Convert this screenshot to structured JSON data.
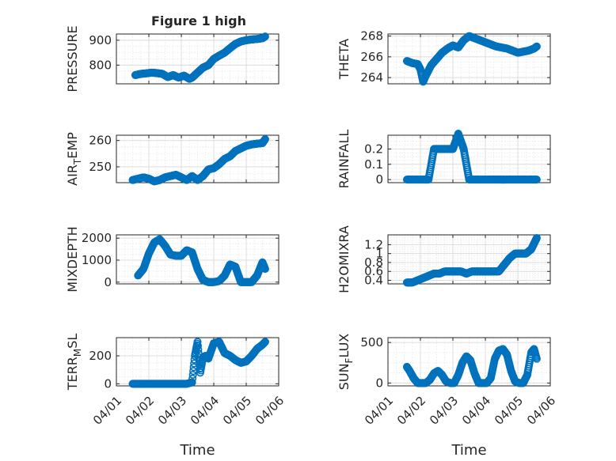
{
  "figure": {
    "marker_color": "#0072bd"
  },
  "chart_data": [
    {
      "type": "scatter",
      "id": "pressure",
      "title": "Figure 1 high",
      "ylabel": "PRESSURE",
      "ylabel_sub": "",
      "ylabel_post": "",
      "xlim": [
        "04/01",
        "04/06"
      ],
      "ylim": [
        725,
        925
      ],
      "yticks": [
        800,
        900
      ],
      "yticklabels": [
        "800",
        "900"
      ],
      "grid": true,
      "x": [
        "04/01 14:00",
        "04/01 18:00",
        "04/01 22:00",
        "04/02 02:00",
        "04/02 06:00",
        "04/02 10:00",
        "04/02 14:00",
        "04/02 18:00",
        "04/02 22:00",
        "04/03 02:00",
        "04/03 06:00",
        "04/03 08:00",
        "04/03 12:00",
        "04/03 16:00",
        "04/03 20:00",
        "04/04 00:00",
        "04/04 04:00",
        "04/04 08:00",
        "04/04 12:00",
        "04/04 16:00",
        "04/04 20:00",
        "04/05 00:00",
        "04/05 04:00",
        "04/05 08:00",
        "04/05 12:00",
        "04/05 14:00"
      ],
      "y": [
        760,
        765,
        767,
        770,
        768,
        765,
        752,
        760,
        750,
        758,
        745,
        750,
        770,
        790,
        800,
        825,
        838,
        850,
        868,
        885,
        895,
        900,
        903,
        905,
        908,
        915
      ]
    },
    {
      "type": "scatter",
      "id": "theta",
      "title": "",
      "ylabel": "THETA",
      "ylabel_sub": "",
      "ylabel_post": "",
      "xlim": [
        "04/01",
        "04/06"
      ],
      "ylim": [
        263.4,
        268.2
      ],
      "yticks": [
        264,
        266,
        268
      ],
      "yticklabels": [
        "264",
        "266",
        "268"
      ],
      "grid": true,
      "x": [
        "04/01 14:00",
        "04/01 18:00",
        "04/01 22:00",
        "04/02 00:00",
        "04/02 02:00",
        "04/02 04:00",
        "04/02 08:00",
        "04/02 12:00",
        "04/02 16:00",
        "04/02 20:00",
        "04/03 00:00",
        "04/03 04:00",
        "04/03 08:00",
        "04/03 12:00",
        "04/03 16:00",
        "04/03 20:00",
        "04/04 00:00",
        "04/04 04:00",
        "04/04 08:00",
        "04/04 12:00",
        "04/04 16:00",
        "04/04 20:00",
        "04/05 00:00",
        "04/05 04:00",
        "04/05 08:00",
        "04/05 12:00",
        "04/05 14:00"
      ],
      "y": [
        265.6,
        265.4,
        265.3,
        264.8,
        263.6,
        264.2,
        265.2,
        265.8,
        266.4,
        266.8,
        267.1,
        266.9,
        267.6,
        268.0,
        267.8,
        267.6,
        267.4,
        267.2,
        267.0,
        266.9,
        266.8,
        266.6,
        266.4,
        266.5,
        266.6,
        266.8,
        267.0
      ]
    },
    {
      "type": "scatter",
      "id": "airtemp",
      "title": "",
      "ylabel": "AIR",
      "ylabel_sub": "T",
      "ylabel_post": "EMP",
      "xlim": [
        "04/01",
        "04/06"
      ],
      "ylim": [
        244,
        262
      ],
      "yticks": [
        250,
        260
      ],
      "yticklabels": [
        "250",
        "260"
      ],
      "grid": true,
      "x": [
        "04/01 12:00",
        "04/01 16:00",
        "04/01 20:00",
        "04/02 00:00",
        "04/02 04:00",
        "04/02 08:00",
        "04/02 12:00",
        "04/02 16:00",
        "04/02 20:00",
        "04/03 00:00",
        "04/03 04:00",
        "04/03 08:00",
        "04/03 12:00",
        "04/03 16:00",
        "04/03 20:00",
        "04/04 00:00",
        "04/04 04:00",
        "04/04 08:00",
        "04/04 12:00",
        "04/04 16:00",
        "04/04 20:00",
        "04/05 00:00",
        "04/05 04:00",
        "04/05 08:00",
        "04/05 12:00",
        "04/05 14:00"
      ],
      "y": [
        245,
        245.5,
        246,
        245.5,
        244.5,
        245,
        246,
        246.5,
        247,
        246,
        245,
        246.5,
        245,
        246.5,
        249,
        249.5,
        251,
        253,
        254,
        256,
        257,
        258,
        258.5,
        258.8,
        259,
        260.5
      ]
    },
    {
      "type": "scatter",
      "id": "rainfall",
      "title": "",
      "ylabel": "RAINFALL",
      "ylabel_sub": "",
      "ylabel_post": "",
      "xlim": [
        "04/01",
        "04/06"
      ],
      "ylim": [
        -0.02,
        0.29
      ],
      "yticks": [
        0,
        0.1,
        0.2
      ],
      "yticklabels": [
        "0",
        "0.1",
        "0.2"
      ],
      "grid": true,
      "x": [
        "04/01 14:00",
        "04/01 18:00",
        "04/01 22:00",
        "04/02 02:00",
        "04/02 06:00",
        "04/02 10:00",
        "04/02 14:00",
        "04/02 18:00",
        "04/02 20:00",
        "04/03 00:00",
        "04/03 04:00",
        "04/03 08:00",
        "04/03 12:00",
        "04/03 16:00",
        "04/03 20:00",
        "04/04 00:00",
        "04/04 04:00",
        "04/04 08:00",
        "04/04 12:00",
        "04/04 16:00",
        "04/04 20:00",
        "04/05 00:00",
        "04/05 04:00",
        "04/05 08:00",
        "04/05 12:00",
        "04/05 14:00"
      ],
      "y": [
        0,
        0,
        0,
        0,
        0,
        0.2,
        0.2,
        0.2,
        0.2,
        0.2,
        0.3,
        0.2,
        0,
        0,
        0,
        0,
        0,
        0,
        0,
        0,
        0,
        0,
        0,
        0,
        0,
        0
      ]
    },
    {
      "type": "scatter",
      "id": "mixdepth",
      "title": "",
      "ylabel": "MIXDEPTH",
      "ylabel_sub": "",
      "ylabel_post": "",
      "xlim": [
        "04/01",
        "04/06"
      ],
      "ylim": [
        -80,
        2150
      ],
      "yticks": [
        0,
        1000,
        2000
      ],
      "yticklabels": [
        "0",
        "1000",
        "2000"
      ],
      "grid": true,
      "x": [
        "04/01 16:00",
        "04/01 20:00",
        "04/02 00:00",
        "04/02 04:00",
        "04/02 08:00",
        "04/02 12:00",
        "04/02 16:00",
        "04/02 20:00",
        "04/03 00:00",
        "04/03 04:00",
        "04/03 08:00",
        "04/03 12:00",
        "04/03 16:00",
        "04/03 20:00",
        "04/04 00:00",
        "04/04 04:00",
        "04/04 08:00",
        "04/04 12:00",
        "04/04 16:00",
        "04/04 20:00",
        "04/05 00:00",
        "04/05 04:00",
        "04/05 08:00",
        "04/05 12:00",
        "04/05 14:00"
      ],
      "y": [
        300,
        600,
        1300,
        1800,
        1950,
        1650,
        1250,
        1200,
        1200,
        1450,
        1350,
        600,
        100,
        0,
        0,
        50,
        300,
        800,
        700,
        0,
        0,
        0,
        300,
        900,
        600
      ]
    },
    {
      "type": "scatter",
      "id": "h2omixra",
      "title": "",
      "ylabel": "H2OMIXRA",
      "ylabel_sub": "",
      "ylabel_post": "",
      "xlim": [
        "04/01",
        "04/06"
      ],
      "ylim": [
        0.32,
        1.42
      ],
      "yticks": [
        0.4,
        0.6,
        0.8,
        1,
        1.2
      ],
      "yticklabels": [
        "0.4",
        "0.6",
        "0.8",
        "1",
        "1.2"
      ],
      "grid": true,
      "x": [
        "04/01 14:00",
        "04/01 18:00",
        "04/01 22:00",
        "04/02 02:00",
        "04/02 06:00",
        "04/02 10:00",
        "04/02 14:00",
        "04/02 18:00",
        "04/02 22:00",
        "04/03 02:00",
        "04/03 06:00",
        "04/03 10:00",
        "04/03 14:00",
        "04/03 18:00",
        "04/03 22:00",
        "04/04 02:00",
        "04/04 06:00",
        "04/04 10:00",
        "04/04 14:00",
        "04/04 18:00",
        "04/04 22:00",
        "04/05 02:00",
        "04/05 06:00",
        "04/05 10:00",
        "04/05 14:00"
      ],
      "y": [
        0.35,
        0.35,
        0.4,
        0.45,
        0.5,
        0.55,
        0.55,
        0.6,
        0.6,
        0.6,
        0.6,
        0.55,
        0.6,
        0.6,
        0.6,
        0.6,
        0.6,
        0.6,
        0.75,
        0.9,
        1.0,
        1.0,
        1.0,
        1.1,
        1.35
      ]
    },
    {
      "type": "scatter",
      "id": "terrmsl",
      "title": "",
      "ylabel": "TERR",
      "ylabel_sub": "M",
      "ylabel_post": "SL",
      "xlim": [
        "04/01",
        "04/06"
      ],
      "ylim": [
        -15,
        330
      ],
      "yticks": [
        0,
        200
      ],
      "yticklabels": [
        "0",
        "200"
      ],
      "xticks": [
        "04/01",
        "04/02",
        "04/03",
        "04/04",
        "04/05",
        "04/06"
      ],
      "xticklabels": [
        "04/01",
        "04/02",
        "04/03",
        "04/04",
        "04/05",
        "04/06"
      ],
      "xlabel": "Time",
      "grid": true,
      "x": [
        "04/01 12:00",
        "04/01 18:00",
        "04/02 00:00",
        "04/02 06:00",
        "04/02 12:00",
        "04/02 18:00",
        "04/03 00:00",
        "04/03 04:00",
        "04/03 08:00",
        "04/03 10:00",
        "04/03 12:00",
        "04/03 14:00",
        "04/03 16:00",
        "04/03 18:00",
        "04/03 20:00",
        "04/04 00:00",
        "04/04 04:00",
        "04/04 08:00",
        "04/04 12:00",
        "04/04 16:00",
        "04/04 20:00",
        "04/05 00:00",
        "04/05 04:00",
        "04/05 08:00",
        "04/05 12:00",
        "04/05 14:00"
      ],
      "y": [
        0,
        0,
        0,
        0,
        0,
        0,
        0,
        0,
        10,
        200,
        300,
        80,
        190,
        200,
        180,
        290,
        300,
        220,
        200,
        170,
        150,
        160,
        200,
        250,
        280,
        300
      ]
    },
    {
      "type": "scatter",
      "id": "sunflux",
      "title": "",
      "ylabel": "SUN",
      "ylabel_sub": "F",
      "ylabel_post": "LUX",
      "xlim": [
        "04/01",
        "04/06"
      ],
      "ylim": [
        -35,
        560
      ],
      "yticks": [
        0,
        500
      ],
      "yticklabels": [
        "0",
        "500"
      ],
      "xticks": [
        "04/01",
        "04/02",
        "04/03",
        "04/04",
        "04/05",
        "04/06"
      ],
      "xticklabels": [
        "04/01",
        "04/02",
        "04/03",
        "04/04",
        "04/05",
        "04/06"
      ],
      "xlabel": "Time",
      "grid": true,
      "x": [
        "04/01 14:00",
        "04/01 16:00",
        "04/01 19:00",
        "04/01 22:00",
        "04/02 01:00",
        "04/02 04:00",
        "04/02 07:00",
        "04/02 10:00",
        "04/02 13:00",
        "04/02 16:00",
        "04/02 19:00",
        "04/02 22:00",
        "04/03 01:00",
        "04/03 04:00",
        "04/03 07:00",
        "04/03 10:00",
        "04/03 13:00",
        "04/03 16:00",
        "04/03 19:00",
        "04/03 22:00",
        "04/04 01:00",
        "04/04 04:00",
        "04/04 07:00",
        "04/04 10:00",
        "04/04 13:00",
        "04/04 16:00",
        "04/04 19:00",
        "04/04 22:00",
        "04/05 01:00",
        "04/05 04:00",
        "04/05 07:00",
        "04/05 10:00",
        "04/05 12:00",
        "04/05 14:00"
      ],
      "y": [
        200,
        150,
        60,
        0,
        0,
        0,
        40,
        120,
        150,
        100,
        20,
        0,
        0,
        100,
        250,
        330,
        280,
        120,
        0,
        0,
        0,
        60,
        300,
        400,
        420,
        350,
        150,
        20,
        0,
        0,
        100,
        380,
        420,
        300
      ]
    }
  ]
}
